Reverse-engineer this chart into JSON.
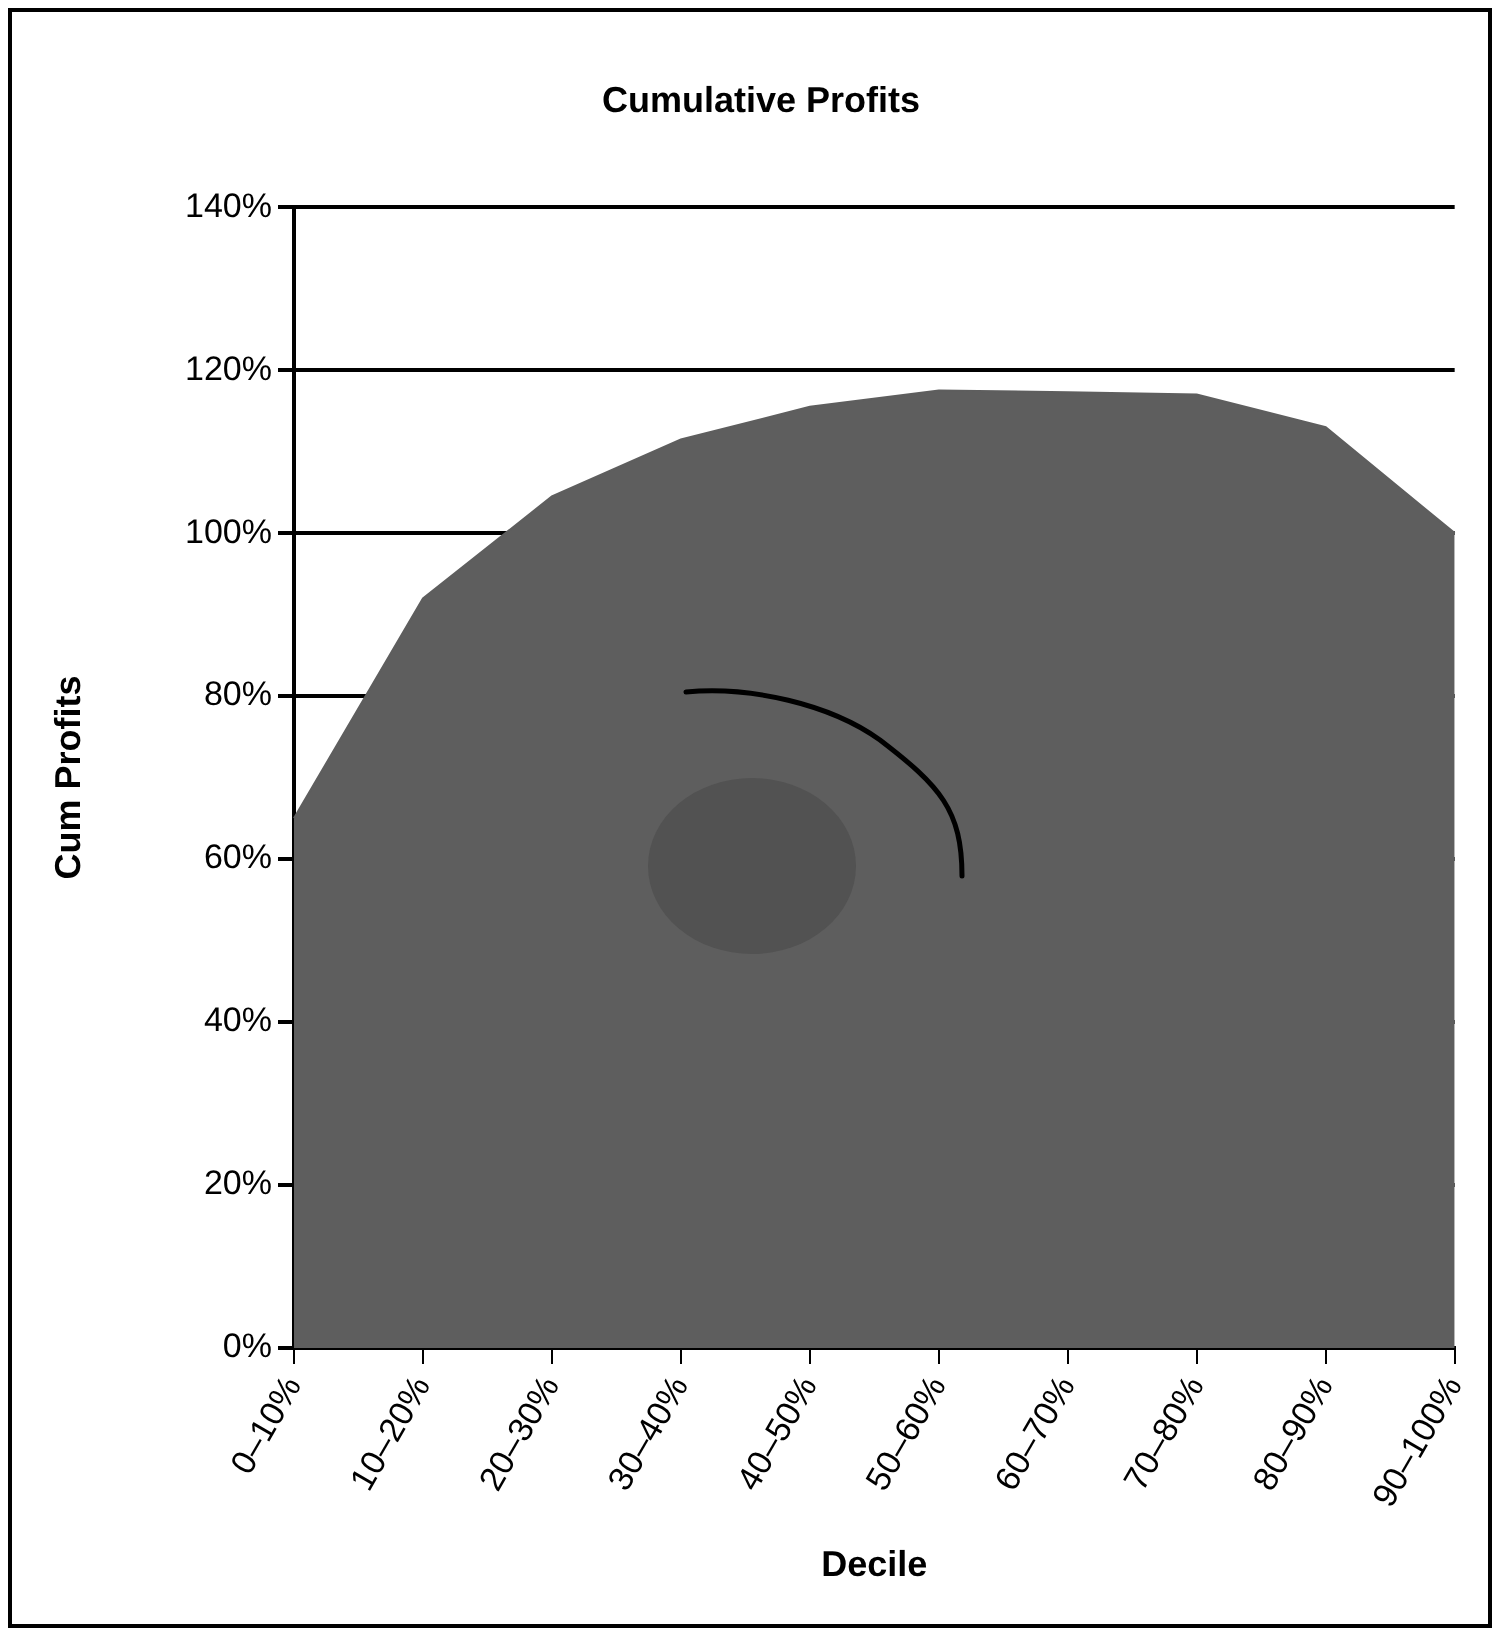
{
  "chart_data": {
    "type": "area",
    "title": "Cumulative Profits",
    "xlabel": "Decile",
    "ylabel": "Cum Profits",
    "categories": [
      "0–10%",
      "10–20%",
      "20–30%",
      "30–40%",
      "40–50%",
      "50–60%",
      "60–70%",
      "70–80%",
      "80–90%",
      "90–100%"
    ],
    "values": [
      65,
      92,
      104.5,
      111.5,
      115.5,
      117.5,
      117.3,
      117,
      113,
      100
    ],
    "color": "#5e5e5e",
    "ylim": [
      0,
      140
    ],
    "yticks": [
      {
        "value": 0,
        "label": "0%"
      },
      {
        "value": 20,
        "label": "20%"
      },
      {
        "value": 40,
        "label": "40%"
      },
      {
        "value": 60,
        "label": "60%"
      },
      {
        "value": 80,
        "label": "80%"
      },
      {
        "value": 100,
        "label": "100%"
      },
      {
        "value": 120,
        "label": "120%"
      },
      {
        "value": 140,
        "label": "140%"
      }
    ],
    "grid": "y",
    "legend": false
  }
}
